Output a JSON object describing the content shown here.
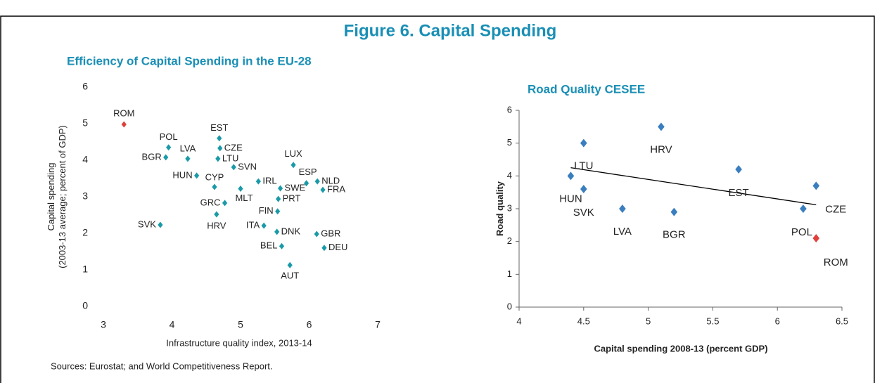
{
  "figure_title": "Figure 6. Capital Spending",
  "source": "Sources: Eurostat; and World Competitiveness Report.",
  "chart_data": [
    {
      "type": "scatter",
      "title": "Efficiency of Capital Spending in the EU-28",
      "xlabel": "Infrastructure quality index, 2013-14",
      "ylabel": [
        "Capital spending",
        "(2003-13 average; percent of GDP)"
      ],
      "labels": [
        "ROM",
        "POL",
        "BGR",
        "LVA",
        "EST",
        "CZE",
        "LTU",
        "SVN",
        "HUN",
        "CYP",
        "MLT",
        "IRL",
        "LUX",
        "ESP",
        "NLD",
        "FRA",
        "SWE",
        "PRT",
        "FIN",
        "GRC",
        "HRV",
        "SVK",
        "ITA",
        "DNK",
        "GBR",
        "BEL",
        "DEU",
        "AUT"
      ],
      "x": [
        3.3,
        3.95,
        3.91,
        4.23,
        4.69,
        4.7,
        4.67,
        4.9,
        4.36,
        4.62,
        5.0,
        5.26,
        5.77,
        5.96,
        6.12,
        6.2,
        5.58,
        5.55,
        5.54,
        4.77,
        4.65,
        3.83,
        5.34,
        5.53,
        6.11,
        5.6,
        6.22,
        5.72
      ],
      "y": [
        4.98,
        4.35,
        4.08,
        4.04,
        4.6,
        4.33,
        4.04,
        3.81,
        3.58,
        3.27,
        3.22,
        3.42,
        3.87,
        3.37,
        3.42,
        3.19,
        3.23,
        2.94,
        2.6,
        2.83,
        2.52,
        2.23,
        2.21,
        2.04,
        1.98,
        1.65,
        1.6,
        1.13
      ],
      "colors": [
        "#e0403c",
        "#1a9aa8",
        "#1a9aa8",
        "#1a9aa8",
        "#1a9aa8",
        "#1a9aa8",
        "#1a9aa8",
        "#1a9aa8",
        "#1a9aa8",
        "#1a9aa8",
        "#1a9aa8",
        "#1a9aa8",
        "#1a9aa8",
        "#1a9aa8",
        "#1a9aa8",
        "#1a9aa8",
        "#1a9aa8",
        "#1a9aa8",
        "#1a9aa8",
        "#1a9aa8",
        "#1a9aa8",
        "#1a9aa8",
        "#1a9aa8",
        "#1a9aa8",
        "#1a9aa8",
        "#1a9aa8",
        "#1a9aa8",
        "#1a9aa8"
      ],
      "xlim": [
        3,
        7
      ],
      "xticks": [
        3,
        4,
        5,
        6,
        7
      ],
      "ylim": [
        0,
        6
      ],
      "yticks": [
        0,
        1,
        2,
        3,
        4,
        5,
        6
      ],
      "axis_lines": false
    },
    {
      "type": "scatter",
      "title": "Road Quality CESEE",
      "xlabel": "Capital spending 2008-13 (percent GDP)",
      "ylabel": [
        "Road quality"
      ],
      "labels": [
        "LTU",
        "HUN",
        "SVK",
        "LVA",
        "HRV",
        "BGR",
        "EST",
        "CZE",
        "POL",
        "ROM"
      ],
      "x": [
        4.5,
        4.4,
        4.5,
        4.8,
        5.1,
        5.2,
        5.7,
        6.3,
        6.2,
        6.3
      ],
      "y": [
        5.0,
        4.0,
        3.6,
        3.0,
        5.5,
        2.9,
        4.2,
        3.7,
        3.0,
        2.1
      ],
      "colors": [
        "#3a7ebf",
        "#3a7ebf",
        "#3a7ebf",
        "#3a7ebf",
        "#3a7ebf",
        "#3a7ebf",
        "#3a7ebf",
        "#3a7ebf",
        "#3a7ebf",
        "#e0403c"
      ],
      "trend_line": {
        "x": [
          4.4,
          6.3
        ],
        "y": [
          4.25,
          3.12
        ]
      },
      "xlim": [
        4,
        6.5
      ],
      "xticks": [
        4,
        4.5,
        5,
        5.5,
        6,
        6.5
      ],
      "ylim": [
        0,
        6
      ],
      "yticks": [
        0,
        1,
        2,
        3,
        4,
        5,
        6
      ],
      "axis_lines": true
    }
  ]
}
